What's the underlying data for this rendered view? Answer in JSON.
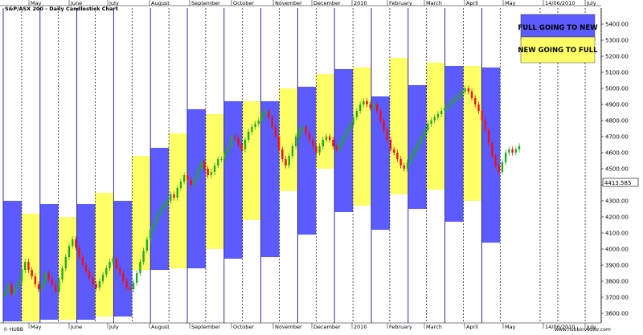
{
  "title": "S&P/ASX 200 - Daily Candlestick Chart",
  "watermark_left": "© HUBB",
  "watermark_right": "www.hubbinvestor.com",
  "last_price_label": "4413.585",
  "colors": {
    "full_to_new": "#5b5bff",
    "new_to_full": "#ffff66",
    "up": "#22aa22",
    "down": "#ee1111",
    "grid": "#000000",
    "axis_text": "#000000"
  },
  "legend": [
    {
      "label": "FULL GOING TO NEW",
      "color": "#5b5bff"
    },
    {
      "label": "NEW GOING TO FULL",
      "color": "#ffff66"
    }
  ],
  "month_labels_top": [
    "May",
    "June",
    "July",
    "August",
    "September",
    "October",
    "November",
    "December",
    "2010",
    "February",
    "March",
    "April",
    "May",
    "14/06/2010",
    "July"
  ],
  "month_labels_bottom": [
    "May",
    "June",
    "July",
    "August",
    "September",
    "October",
    "November",
    "December",
    "2010",
    "February",
    "March",
    "April",
    "May",
    "14/06/2010",
    "July"
  ],
  "chart_data": {
    "type": "candlestick",
    "ylim": [
      3540,
      5500
    ],
    "y_ticks": [
      3600,
      3700,
      3800,
      3900,
      4000,
      4100,
      4200,
      4300,
      4400,
      4500,
      4600,
      4700,
      4800,
      4900,
      5000,
      5100,
      5200,
      5300,
      5400
    ],
    "y_tick_labels": [
      "3600.00",
      "3700.00",
      "3800.00",
      "3900.00",
      "4000.00",
      "4100.00",
      "4200.00",
      "4300.00",
      "4400.00",
      "4500.00",
      "4600.00",
      "4700.00",
      "4800.00",
      "4900.00",
      "5000.00",
      "5100.00",
      "5200.00",
      "5300.00",
      "5400.00"
    ],
    "lunar_bands": [
      {
        "type": "full_to_new",
        "high": 4300,
        "low": 3550
      },
      {
        "type": "new_to_full",
        "high": 4220,
        "low": 3550
      },
      {
        "type": "full_to_new",
        "high": 4280,
        "low": 3560
      },
      {
        "type": "new_to_full",
        "high": 4200,
        "low": 3560
      },
      {
        "type": "full_to_new",
        "high": 4280,
        "low": 3560
      },
      {
        "type": "new_to_full",
        "high": 4350,
        "low": 3580
      },
      {
        "type": "full_to_new",
        "high": 4300,
        "low": 3580
      },
      {
        "type": "new_to_full",
        "high": 4580,
        "low": 3870
      },
      {
        "type": "full_to_new",
        "high": 4630,
        "low": 3870
      },
      {
        "type": "new_to_full",
        "high": 4720,
        "low": 3880
      },
      {
        "type": "full_to_new",
        "high": 4870,
        "low": 3880
      },
      {
        "type": "new_to_full",
        "high": 4840,
        "low": 4000
      },
      {
        "type": "full_to_new",
        "high": 4920,
        "low": 3940
      },
      {
        "type": "new_to_full",
        "high": 4920,
        "low": 4180
      },
      {
        "type": "full_to_new",
        "high": 4920,
        "low": 3950
      },
      {
        "type": "new_to_full",
        "high": 5000,
        "low": 4360
      },
      {
        "type": "full_to_new",
        "high": 5010,
        "low": 4090
      },
      {
        "type": "new_to_full",
        "high": 5090,
        "low": 4500
      },
      {
        "type": "full_to_new",
        "high": 5120,
        "low": 4230
      },
      {
        "type": "new_to_full",
        "high": 5130,
        "low": 4270
      },
      {
        "type": "full_to_new",
        "high": 4950,
        "low": 4120
      },
      {
        "type": "new_to_full",
        "high": 5190,
        "low": 4340
      },
      {
        "type": "full_to_new",
        "high": 5020,
        "low": 4250
      },
      {
        "type": "new_to_full",
        "high": 5160,
        "low": 4370
      },
      {
        "type": "full_to_new",
        "high": 5140,
        "low": 4170
      },
      {
        "type": "new_to_full",
        "high": 5140,
        "low": 4300
      },
      {
        "type": "full_to_new",
        "high": 5130,
        "low": 4040
      }
    ],
    "closes": [
      3730,
      3780,
      3720,
      3760,
      3800,
      3870,
      3920,
      3870,
      3830,
      3780,
      3750,
      3790,
      3850,
      3810,
      3780,
      3740,
      3810,
      3880,
      3950,
      4020,
      4060,
      4010,
      3950,
      3900,
      3860,
      3820,
      3780,
      3760,
      3800,
      3840,
      3880,
      3920,
      3940,
      3880,
      3850,
      3800,
      3760,
      3750,
      3790,
      3850,
      3920,
      3990,
      4060,
      4120,
      4170,
      4220,
      4250,
      4280,
      4300,
      4340,
      4320,
      4380,
      4420,
      4460,
      4430,
      4400,
      4440,
      4500,
      4540,
      4500,
      4460,
      4480,
      4520,
      4560,
      4560,
      4600,
      4640,
      4700,
      4690,
      4650,
      4620,
      4680,
      4730,
      4760,
      4780,
      4800,
      4840,
      4860,
      4820,
      4760,
      4700,
      4620,
      4560,
      4520,
      4580,
      4640,
      4700,
      4740,
      4760,
      4720,
      4680,
      4640,
      4600,
      4640,
      4680,
      4700,
      4680,
      4640,
      4620,
      4660,
      4700,
      4740,
      4780,
      4820,
      4860,
      4900,
      4920,
      4900,
      4880,
      4900,
      4860,
      4800,
      4740,
      4680,
      4620,
      4600,
      4560,
      4520,
      4500,
      4540,
      4580,
      4620,
      4660,
      4700,
      4740,
      4780,
      4800,
      4820,
      4840,
      4860,
      4880,
      4900,
      4920,
      4940,
      4960,
      4980,
      5000,
      4980,
      4940,
      4900,
      4860,
      4800,
      4740,
      4660,
      4580,
      4520,
      4480,
      4540,
      4600,
      4620,
      4600,
      4620,
      4640
    ]
  }
}
